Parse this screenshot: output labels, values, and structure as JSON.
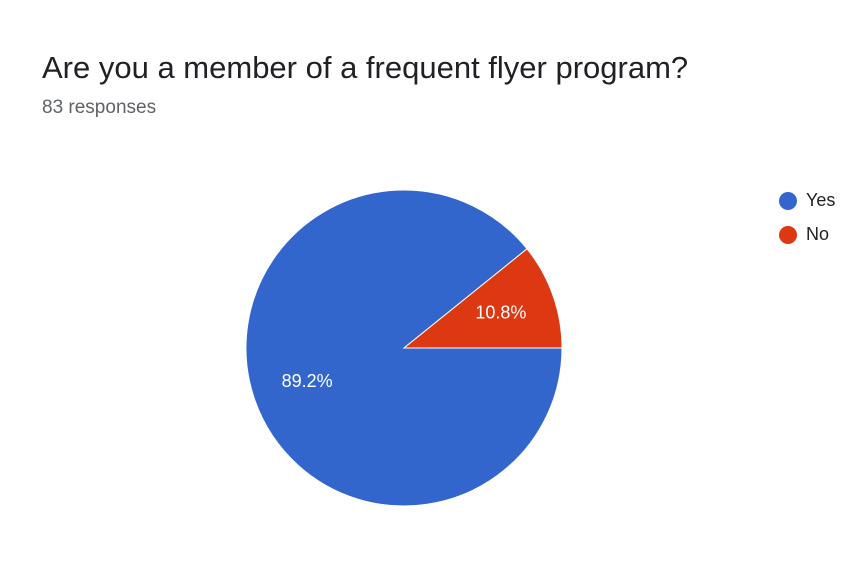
{
  "chart_data": {
    "type": "pie",
    "title": "Are you a member of a frequent flyer program?",
    "subtitle": "83 responses",
    "categories": [
      "Yes",
      "No"
    ],
    "values": [
      89.2,
      10.8
    ],
    "value_labels": [
      "89.2%",
      "10.8%"
    ],
    "colors": [
      "#3366cc",
      "#dc3912"
    ],
    "legend": "right"
  }
}
